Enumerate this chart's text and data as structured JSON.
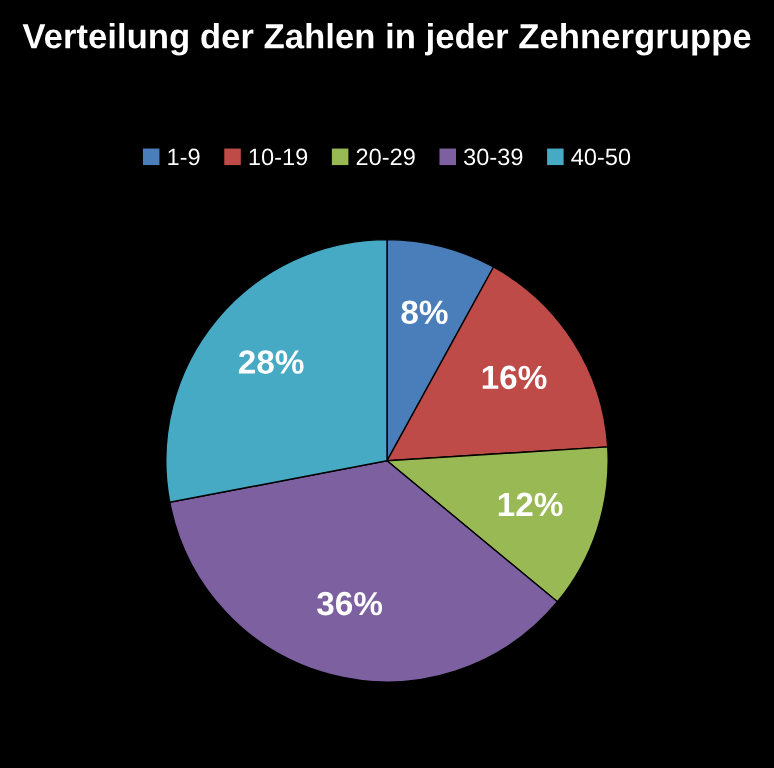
{
  "chart_data": {
    "type": "pie",
    "title": "Verteilung der Zahlen in jeder Zehnergruppe",
    "categories": [
      "1-9",
      "10-19",
      "20-29",
      "30-39",
      "40-50"
    ],
    "values": [
      8,
      16,
      12,
      36,
      28
    ],
    "value_labels": [
      "8%",
      "16%",
      "12%",
      "36%",
      "28%"
    ],
    "colors": [
      "#4a7ebb",
      "#be4b48",
      "#98b954",
      "#7d60a0",
      "#46aac5"
    ],
    "legend": "top"
  }
}
